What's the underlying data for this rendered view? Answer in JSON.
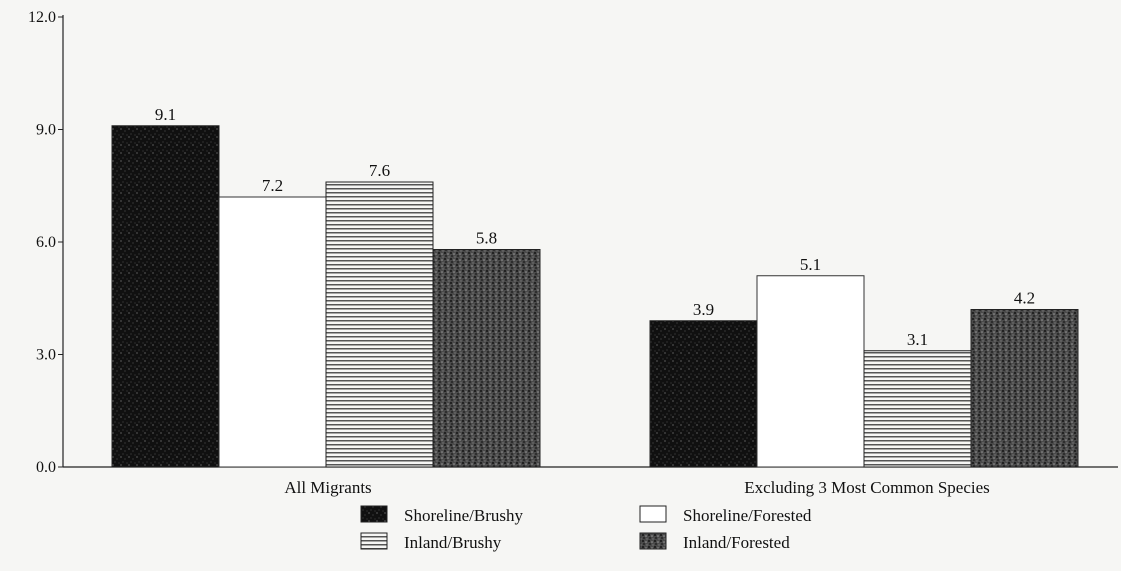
{
  "chart_data": {
    "type": "bar",
    "categories": [
      "All Migrants",
      "Excluding 3 Most Common Species"
    ],
    "series": [
      {
        "name": "Shoreline/Brushy",
        "values": [
          9.1,
          3.9
        ],
        "pattern": "speckled-dark",
        "color": "#111111"
      },
      {
        "name": "Shoreline/Forested",
        "values": [
          7.2,
          5.1
        ],
        "pattern": "white",
        "color": "#ffffff"
      },
      {
        "name": "Inland/Brushy",
        "values": [
          7.6,
          3.1
        ],
        "pattern": "horizontal-stripes",
        "color": "#7a7a7a"
      },
      {
        "name": "Inland/Forested",
        "values": [
          5.8,
          4.2
        ],
        "pattern": "stipple-dark",
        "color": "#3a3a3a"
      }
    ],
    "yticks": [
      "0.0",
      "3.0",
      "6.0",
      "9.0",
      "12.0"
    ],
    "ylim": [
      0,
      12
    ],
    "grid": false,
    "legend_position": "bottom-center",
    "title": "",
    "xlabel": "",
    "ylabel": ""
  },
  "colors": {
    "axis": "#222222",
    "text": "#111111",
    "background": "#f6f6f4"
  }
}
